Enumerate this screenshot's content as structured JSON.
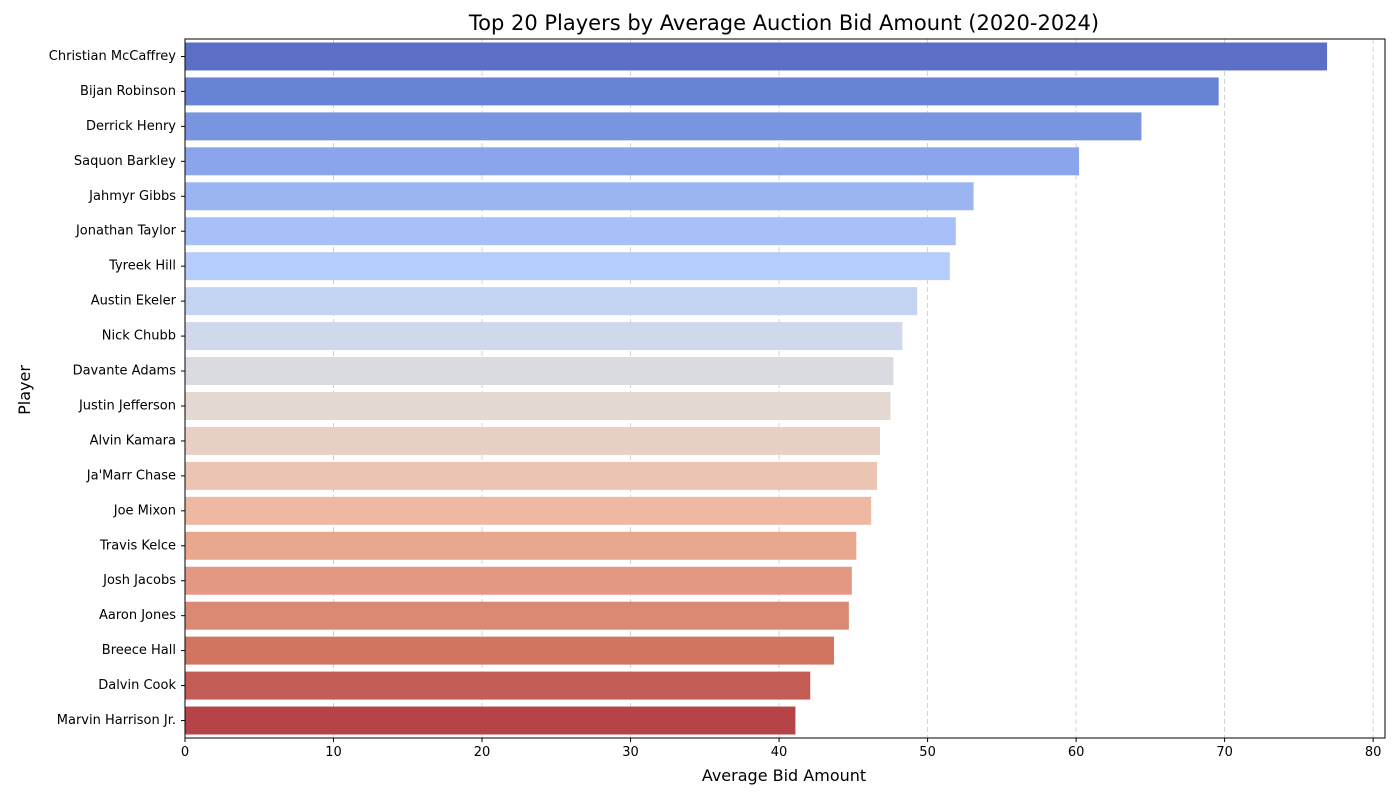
{
  "chart_data": {
    "type": "bar",
    "orientation": "horizontal",
    "title": "Top 20 Players by Average Auction Bid Amount (2020-2024)",
    "xlabel": "Average Bid Amount",
    "ylabel": "Player",
    "xlim": [
      0,
      80.8
    ],
    "xticks": [
      0,
      10,
      20,
      30,
      40,
      50,
      60,
      70,
      80
    ],
    "grid": {
      "x": true,
      "y": false,
      "style": "dashed"
    },
    "colormap": "coolwarm",
    "categories": [
      "Christian McCaffrey",
      "Bijan Robinson",
      "Derrick Henry",
      "Saquon Barkley",
      "Jahmyr Gibbs",
      "Jonathan Taylor",
      "Tyreek Hill",
      "Austin Ekeler",
      "Nick Chubb",
      "Davante Adams",
      "Justin Jefferson",
      "Alvin Kamara",
      "Ja'Marr Chase",
      "Joe Mixon",
      "Travis Kelce",
      "Josh Jacobs",
      "Aaron Jones",
      "Breece Hall",
      "Dalvin Cook",
      "Marvin Harrison Jr."
    ],
    "values": [
      76.9,
      69.6,
      64.4,
      60.2,
      53.1,
      51.9,
      51.5,
      49.3,
      48.3,
      47.7,
      47.5,
      46.8,
      46.6,
      46.2,
      45.2,
      44.9,
      44.7,
      43.7,
      42.1,
      41.1
    ],
    "colors": [
      "#5a6fc5",
      "#6882d5",
      "#7995df",
      "#8aa5ec",
      "#9bb5f3",
      "#a7c0f7",
      "#b5cdfa",
      "#c3d4f2",
      "#d0d8ec",
      "#dadbe0",
      "#e3d8d2",
      "#e8d0c4",
      "#ebc4b3",
      "#eeb8a2",
      "#e9a78d",
      "#e39883",
      "#da8a72",
      "#d17460",
      "#c35c55",
      "#b54347"
    ]
  }
}
